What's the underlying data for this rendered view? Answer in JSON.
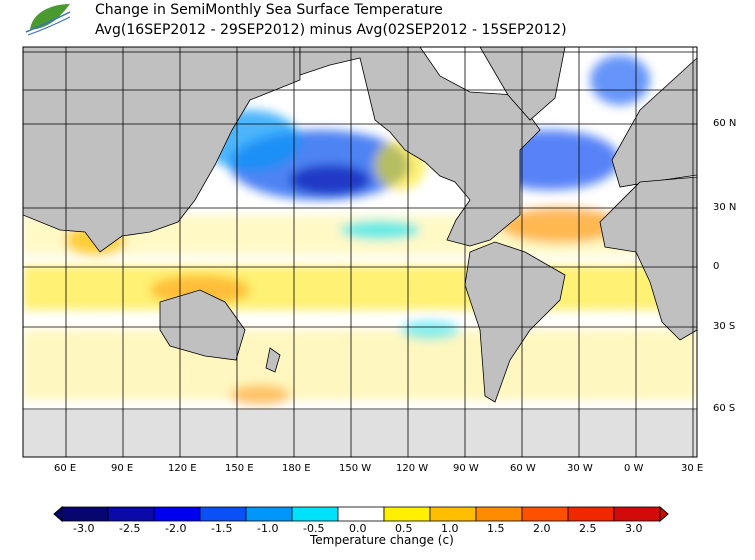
{
  "header": {
    "title": "Change in SemiMonthly Sea Surface Temperature",
    "subtitle": "Avg(16SEP2012 - 29SEP2012) minus Avg(02SEP2012 - 15SEP2012)",
    "logo_icon": "leaf-wave-logo"
  },
  "map": {
    "lon_labels": [
      "60 E",
      "90 E",
      "120 E",
      "150 E",
      "180 E",
      "150 W",
      "120 W",
      "90 W",
      "60 W",
      "30 W",
      "0 W",
      "30 E"
    ],
    "lat_labels": [
      "60 N",
      "30 N",
      "0",
      "30 S",
      "60 S"
    ],
    "land_color": "#c0c0c0",
    "ice_color": "#e0e0e0"
  },
  "colorbar": {
    "title": "Temperature change  (c)",
    "tick_labels": [
      "-3.0",
      "-2.5",
      "-2.0",
      "-1.5",
      "-1.0",
      "-0.5",
      "0.0",
      "0.5",
      "1.0",
      "1.5",
      "2.0",
      "2.5",
      "3.0"
    ],
    "colors": [
      "#06066e",
      "#0a0aa8",
      "#0000f0",
      "#0a50f5",
      "#0096fa",
      "#00e1fa",
      "#ffffff",
      "#fff000",
      "#ffbe00",
      "#ff8c00",
      "#ff5000",
      "#f02800",
      "#d20a0a"
    ]
  }
}
